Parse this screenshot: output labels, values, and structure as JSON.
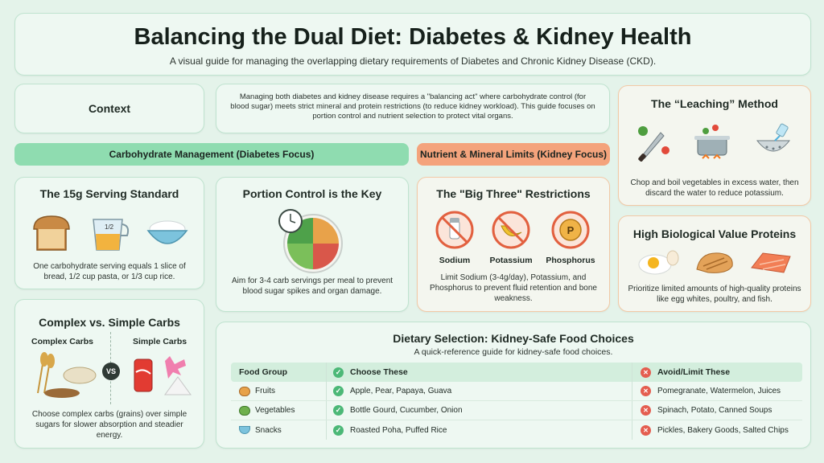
{
  "header": {
    "title": "Balancing the Dual Diet: Diabetes & Kidney Health",
    "subtitle": "A visual guide for managing the overlapping dietary requirements of Diabetes and Chronic Kidney Disease (CKD)."
  },
  "context": {
    "label": "Context",
    "text": "Managing both diabetes and kidney disease requires a \"balancing act\" where carbohydrate control (for blood sugar) meets strict mineral and protein restrictions (to reduce kidney workload). This guide focuses on portion control and nutrient selection to protect vital organs."
  },
  "banners": {
    "carb": "Carbohydrate Management (Diabetes Focus)",
    "kidney": "Nutrient & Mineral Limits (Kidney Focus)"
  },
  "serving": {
    "title": "The 15g Serving Standard",
    "cup_label": "1/2",
    "text": "One carbohydrate serving equals 1 slice of bread, 1/2 cup pasta, or 1/3 cup rice."
  },
  "portion": {
    "title": "Portion Control is the Key",
    "text": "Aim for 3-4 carb servings per meal to prevent blood sugar spikes and organ damage."
  },
  "bigthree": {
    "title": "The \"Big Three\" Restrictions",
    "items": [
      "Sodium",
      "Potassium",
      "Phosphorus"
    ],
    "phosphorus_letter": "P",
    "text": "Limit Sodium (3-4g/day), Potassium, and Phosphorus to prevent fluid retention and bone weakness."
  },
  "leaching": {
    "title": "The “Leaching” Method",
    "text": "Chop and boil vegetables in excess water, then discard the water to reduce potassium."
  },
  "protein": {
    "title": "High Biological Value Proteins",
    "text": "Prioritize limited amounts of high-quality proteins like egg whites, poultry, and fish."
  },
  "carbs": {
    "title": "Complex vs. Simple Carbs",
    "complex_label": "Complex Carbs",
    "simple_label": "Simple Carbs",
    "vs": "VS",
    "text": "Choose complex carbs (grains) over simple sugars for slower absorption and steadier energy."
  },
  "selection": {
    "title": "Dietary Selection: Kidney-Safe Food Choices",
    "subtitle": "A quick-reference guide for kidney-safe food choices.",
    "headers": [
      "Food Group",
      "Choose These",
      "Avoid/Limit These"
    ],
    "rows": [
      {
        "group": "Fruits",
        "choose": "Apple, Pear, Papaya, Guava",
        "avoid": "Pomegranate, Watermelon, Juices"
      },
      {
        "group": "Vegetables",
        "choose": "Bottle Gourd, Cucumber, Onion",
        "avoid": "Spinach, Potato, Canned Soups"
      },
      {
        "group": "Snacks",
        "choose": "Roasted Poha, Puffed Rice",
        "avoid": "Pickles, Bakery Goods, Salted Chips"
      }
    ]
  },
  "colors": {
    "background": "#e4f3ea",
    "carb_banner": "#8fdcb0",
    "kidney_banner": "#f4a37c",
    "check": "#4cb877",
    "cross": "#e45d4f"
  }
}
